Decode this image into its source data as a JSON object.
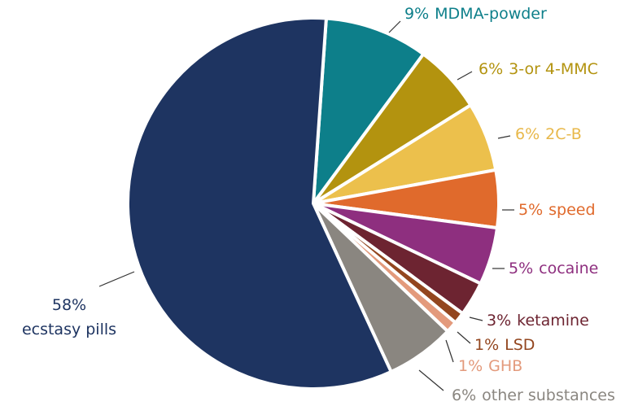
{
  "chart_data": {
    "type": "pie",
    "categories": [
      "MDMA-powder",
      "3-or 4-MMC",
      "2C-B",
      "speed",
      "cocaine",
      "ketamine",
      "LSD",
      "GHB",
      "other substances",
      "ecstasy pills"
    ],
    "values": [
      9,
      6,
      6,
      5,
      5,
      3,
      1,
      1,
      6,
      58
    ],
    "value_labels": [
      "9%",
      "6%",
      "6%",
      "5%",
      "5%",
      "3%",
      "1%",
      "1%",
      "6%",
      "58%"
    ],
    "colors": [
      "#0d7f8a",
      "#b3930f",
      "#ecc04c",
      "#e06a2c",
      "#8e2f7f",
      "#6d2431",
      "#93461f",
      "#e39a7c",
      "#8a8680",
      "#1e3461"
    ]
  }
}
